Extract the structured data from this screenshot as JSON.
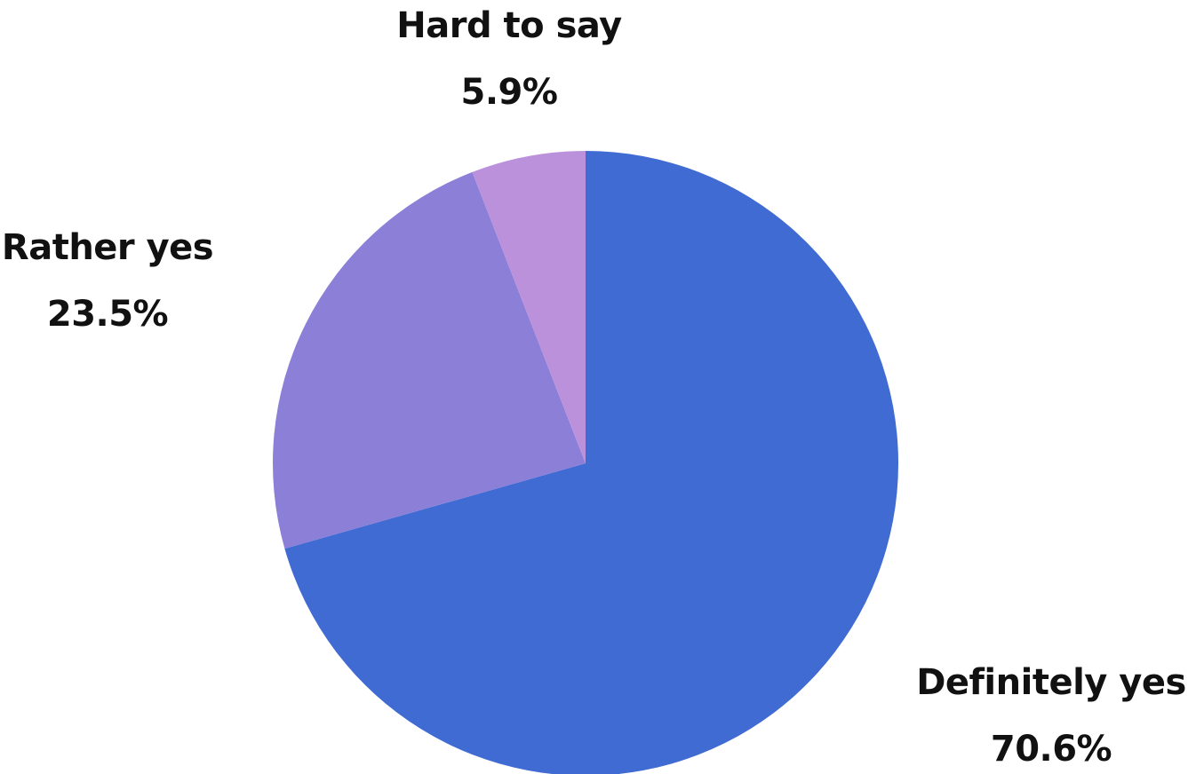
{
  "chart_data": {
    "type": "pie",
    "title": "",
    "slices": [
      {
        "label": "Definitely yes",
        "value": 70.6,
        "value_text": "70.6%",
        "color": "#3f6bd2"
      },
      {
        "label": "Rather yes",
        "value": 23.5,
        "value_text": "23.5%",
        "color": "#8b7fd8"
      },
      {
        "label": "Hard to say",
        "value": 5.9,
        "value_text": "5.9%",
        "color": "#bb91dc"
      }
    ],
    "start_angle": "12 o'clock",
    "direction": "clockwise",
    "legend": "none"
  }
}
